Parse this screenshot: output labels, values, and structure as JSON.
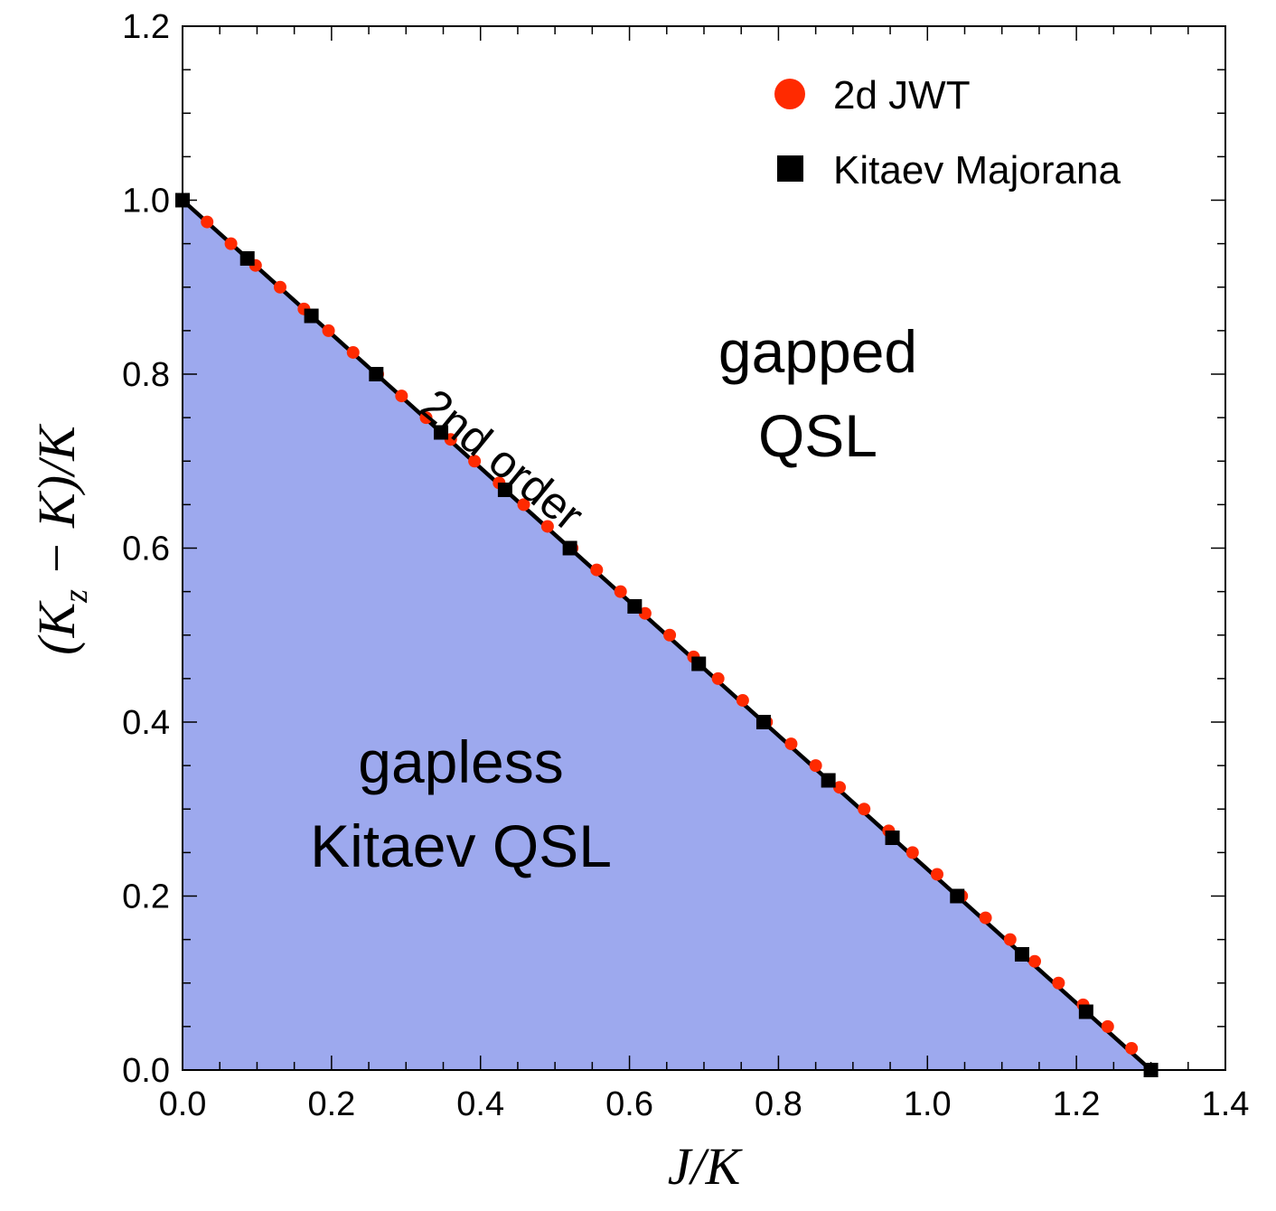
{
  "chart_data": {
    "type": "scatter",
    "title": "",
    "xlabel": "J/K",
    "ylabel": "(K_z − K)/K",
    "xlim": [
      0.0,
      1.4
    ],
    "ylim": [
      0.0,
      1.2
    ],
    "x_ticks": [
      "0.0",
      "0.2",
      "0.4",
      "0.6",
      "0.8",
      "1.0",
      "1.2",
      "1.4"
    ],
    "y_ticks": [
      "0.0",
      "0.2",
      "0.4",
      "0.6",
      "0.8",
      "1.0",
      "1.2"
    ],
    "fill_color": "#9da9ee",
    "boundary_line": {
      "x": [
        0.0,
        1.3
      ],
      "y": [
        1.0,
        0.0
      ],
      "annotation": "2nd order"
    },
    "series": [
      {
        "name": "2d JWT",
        "marker": "circle",
        "color": "#ff2a00",
        "x": [
          0.0,
          0.033,
          0.065,
          0.098,
          0.131,
          0.163,
          0.196,
          0.229,
          0.262,
          0.294,
          0.327,
          0.36,
          0.392,
          0.425,
          0.458,
          0.49,
          0.523,
          0.556,
          0.588,
          0.621,
          0.654,
          0.686,
          0.719,
          0.752,
          0.784,
          0.817,
          0.85,
          0.882,
          0.915,
          0.948,
          0.98,
          1.013,
          1.046,
          1.078,
          1.111,
          1.144,
          1.176,
          1.209,
          1.242,
          1.274
        ],
        "y": [
          1.0,
          0.975,
          0.95,
          0.925,
          0.9,
          0.875,
          0.85,
          0.825,
          0.8,
          0.775,
          0.75,
          0.725,
          0.7,
          0.675,
          0.65,
          0.625,
          0.6,
          0.575,
          0.55,
          0.525,
          0.5,
          0.475,
          0.45,
          0.425,
          0.4,
          0.375,
          0.35,
          0.325,
          0.3,
          0.275,
          0.25,
          0.225,
          0.2,
          0.175,
          0.15,
          0.125,
          0.1,
          0.075,
          0.05,
          0.025
        ]
      },
      {
        "name": "Kitaev Majorana",
        "marker": "square",
        "color": "#000000",
        "x": [
          0.0,
          0.087,
          0.173,
          0.26,
          0.347,
          0.433,
          0.52,
          0.607,
          0.693,
          0.78,
          0.867,
          0.953,
          1.04,
          1.127,
          1.213,
          1.3
        ],
        "y": [
          1.0,
          0.933,
          0.867,
          0.8,
          0.733,
          0.667,
          0.6,
          0.533,
          0.467,
          0.4,
          0.333,
          0.267,
          0.2,
          0.133,
          0.067,
          0.0
        ]
      }
    ],
    "legend_position": "top-right",
    "annotations": [
      {
        "lines": [
          "gapped",
          "QSL"
        ],
        "x": 0.85,
        "y": 0.85
      },
      {
        "lines": [
          "gapless",
          "Kitaev QSL"
        ],
        "x": 0.375,
        "y": 0.34
      }
    ]
  },
  "labels": {
    "legend_jwt": "2d JWT",
    "legend_kitaev": "Kitaev Majorana",
    "annotation_line": "2nd order",
    "gapped_line1": "gapped",
    "gapped_line2": "QSL",
    "gapless_line1": "gapless",
    "gapless_line2": "Kitaev QSL",
    "xlabel": "J/K",
    "ylabel_prefix": "(K",
    "ylabel_sub": "z",
    "ylabel_suffix": " − K)/K"
  }
}
